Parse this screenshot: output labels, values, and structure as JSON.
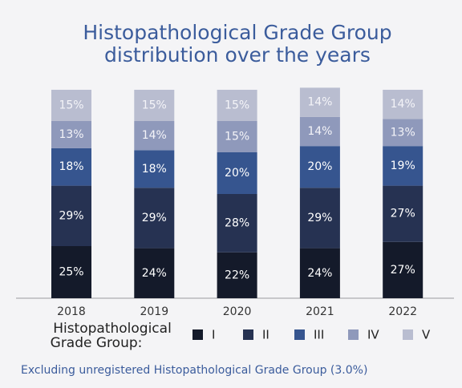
{
  "chart_data": {
    "type": "stacked-bar",
    "title": [
      "Histopathological Grade Group",
      "distribution over the years"
    ],
    "categories": [
      "2018",
      "2019",
      "2020",
      "2021",
      "2022"
    ],
    "legend_title": [
      "Histopathological",
      "Grade Group:"
    ],
    "series": [
      {
        "name": "I",
        "color": "#141a2a",
        "values": [
          25,
          24,
          22,
          24,
          27
        ],
        "value_labels": [
          "25%",
          "24%",
          "22%",
          "24%",
          "27%"
        ]
      },
      {
        "name": "II",
        "color": "#263252",
        "values": [
          29,
          29,
          28,
          29,
          27
        ],
        "value_labels": [
          "29%",
          "29%",
          "28%",
          "29%",
          "27%"
        ]
      },
      {
        "name": "III",
        "color": "#36558f",
        "values": [
          18,
          18,
          20,
          20,
          19
        ],
        "value_labels": [
          "18%",
          "18%",
          "20%",
          "20%",
          "19%"
        ]
      },
      {
        "name": "IV",
        "color": "#8f99bb",
        "values": [
          13,
          14,
          15,
          14,
          13
        ],
        "value_labels": [
          "13%",
          "14%",
          "15%",
          "14%",
          "13%"
        ]
      },
      {
        "name": "V",
        "color": "#b9bdd0",
        "values": [
          15,
          15,
          15,
          14,
          14
        ],
        "value_labels": [
          "15%",
          "15%",
          "15%",
          "14%",
          "14%"
        ]
      }
    ],
    "note": "Excluding unregistered Histopathological Grade Group (3.0%)"
  }
}
